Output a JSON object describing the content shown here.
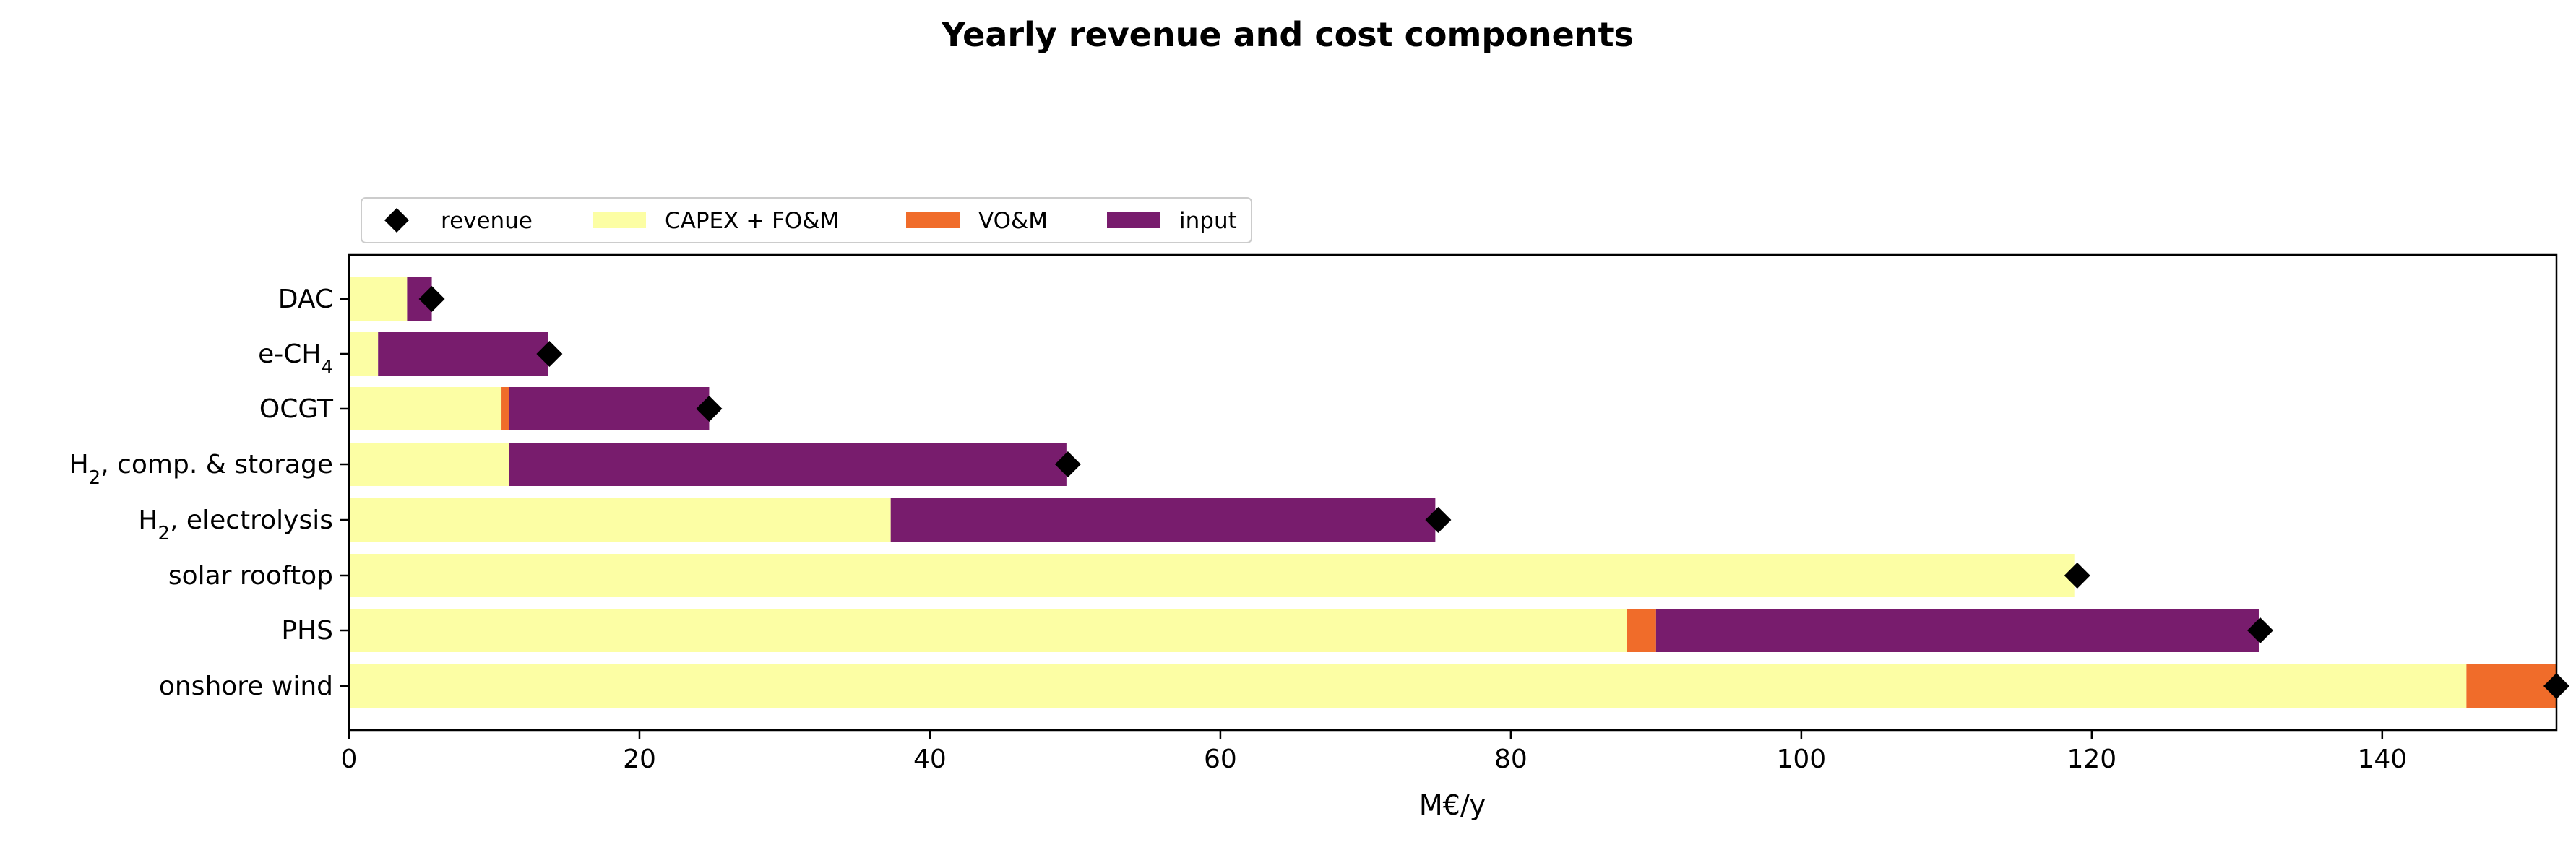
{
  "chart_data": {
    "type": "bar",
    "orientation": "horizontal",
    "stacked": true,
    "title": "Yearly revenue and cost components",
    "xlabel": "M€/y",
    "ylabel": "",
    "xlim": [
      0,
      152
    ],
    "xticks": [
      0,
      20,
      40,
      60,
      80,
      100,
      120,
      140
    ],
    "grid": false,
    "legend_position": "top-left, outside plot",
    "categories": [
      {
        "base": "DAC",
        "sub": "",
        "rest": ""
      },
      {
        "base": "e-CH",
        "sub": "4",
        "rest": ""
      },
      {
        "base": "OCGT",
        "sub": "",
        "rest": ""
      },
      {
        "base": "H",
        "sub": "2",
        "rest": ", comp. & storage"
      },
      {
        "base": "H",
        "sub": "2",
        "rest": ", electrolysis"
      },
      {
        "base": "solar rooftop",
        "sub": "",
        "rest": ""
      },
      {
        "base": "PHS",
        "sub": "",
        "rest": ""
      },
      {
        "base": "onshore wind",
        "sub": "",
        "rest": ""
      }
    ],
    "series": [
      {
        "name": "CAPEX + FO&M",
        "color": "#fcfea4",
        "values": [
          4.0,
          2.0,
          10.5,
          11.0,
          37.3,
          118.8,
          88.0,
          145.8
        ]
      },
      {
        "name": "VO&M",
        "color": "#f06c2a",
        "values": [
          0.0,
          0.0,
          0.5,
          0.0,
          0.0,
          0.0,
          2.0,
          6.2
        ]
      },
      {
        "name": "input",
        "color": "#781c6d",
        "values": [
          1.7,
          11.7,
          13.8,
          38.4,
          37.5,
          0.0,
          41.5,
          0.0
        ]
      }
    ],
    "revenue": {
      "name": "revenue",
      "marker": "diamond",
      "color": "#000000",
      "values": [
        5.7,
        13.8,
        24.8,
        49.5,
        75.0,
        119.0,
        131.6,
        152.0
      ]
    }
  }
}
